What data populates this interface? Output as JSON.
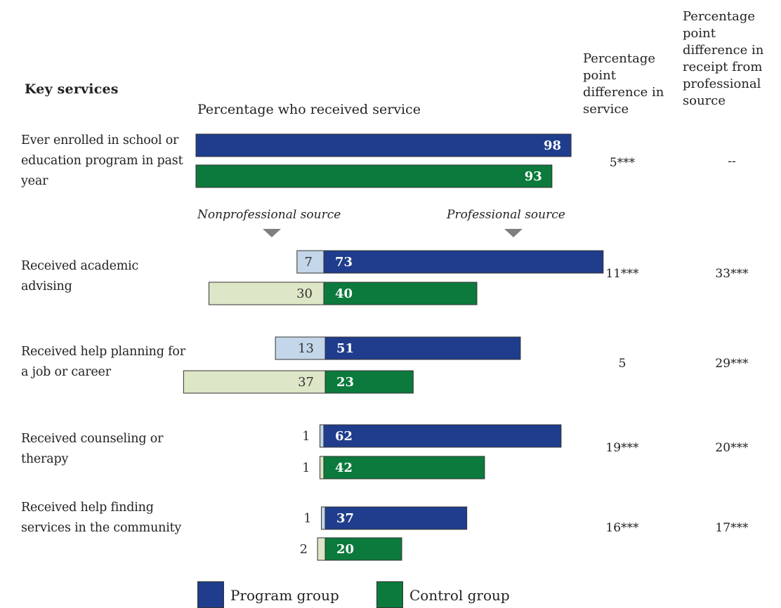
{
  "heading": "Key services",
  "column_label": "Percentage who received service",
  "col_header_1": "Percentage point difference in service",
  "col_header_2": "Percentage point difference in receipt from professional source",
  "source_labels": {
    "nonprofessional": "Nonprofessional source",
    "professional": "Professional source"
  },
  "legend": {
    "program": "Program group",
    "control": "Control group"
  },
  "colors": {
    "program": "#1f3d8c",
    "control": "#0b7a3c",
    "program_nonprof": "#c3d6ea",
    "control_nonprof": "#dde6c6",
    "arrow": "#7f7f7f"
  },
  "chart_data": {
    "type": "bar",
    "title": "Percentage who received service",
    "series": [
      {
        "name": "Program group"
      },
      {
        "name": "Control group"
      }
    ],
    "rows": [
      {
        "label": "Ever enrolled in school or education program in past year",
        "program": {
          "nonprofessional": null,
          "professional": 98
        },
        "control": {
          "nonprofessional": null,
          "professional": 93
        },
        "diff_service": "5***",
        "diff_professional": "--"
      },
      {
        "label": "Received academic advising",
        "program": {
          "nonprofessional": 7,
          "professional": 73
        },
        "control": {
          "nonprofessional": 30,
          "professional": 40
        },
        "diff_service": "11***",
        "diff_professional": "33***"
      },
      {
        "label": "Received help planning for a job or career",
        "program": {
          "nonprofessional": 13,
          "professional": 51
        },
        "control": {
          "nonprofessional": 37,
          "professional": 23
        },
        "diff_service": "5",
        "diff_professional": "29***"
      },
      {
        "label": "Received counseling or therapy",
        "program": {
          "nonprofessional": 1,
          "professional": 62
        },
        "control": {
          "nonprofessional": 1,
          "professional": 42
        },
        "diff_service": "19***",
        "diff_professional": "20***"
      },
      {
        "label": "Received help finding services in the community",
        "program": {
          "nonprofessional": 1,
          "professional": 37
        },
        "control": {
          "nonprofessional": 2,
          "professional": 20
        },
        "diff_service": "16***",
        "diff_professional": "17***"
      }
    ]
  }
}
